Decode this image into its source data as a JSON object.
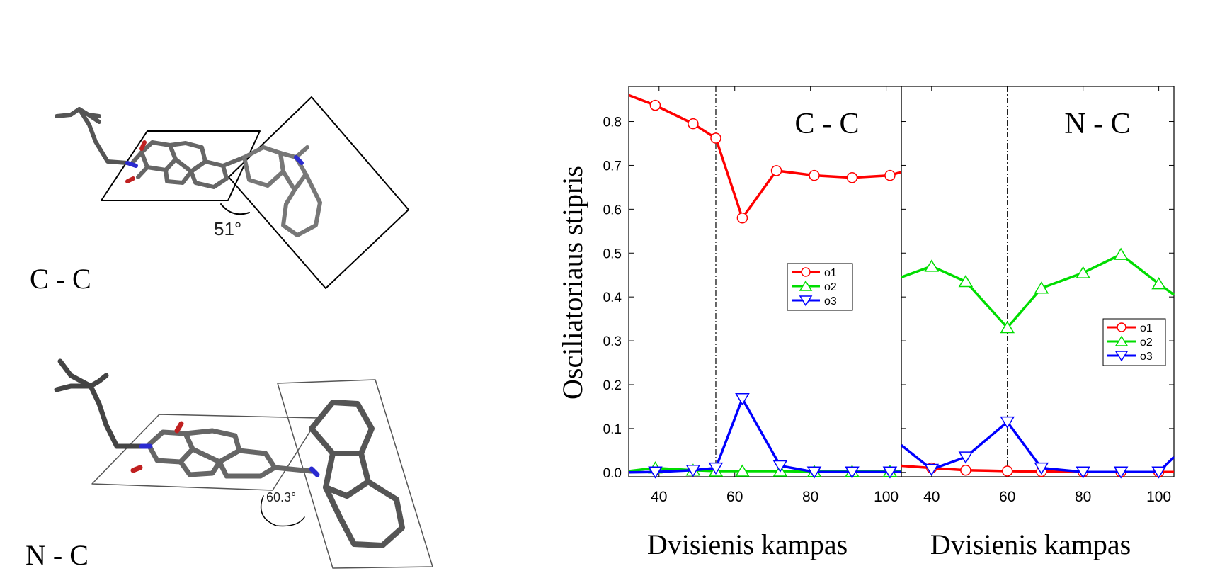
{
  "molecules": [
    {
      "label": "C - C",
      "angle_text": "51°"
    },
    {
      "label": "N - C",
      "angle_text": "60.3°"
    }
  ],
  "chart_data": [
    {
      "type": "line",
      "panel_label": "C - C",
      "xlabel": "Dvisienis kampas",
      "ylabel": "Osciliatoriaus stipris",
      "xlim": [
        32,
        104
      ],
      "ylim": [
        -0.01,
        0.88
      ],
      "x_ticks": [
        40,
        60,
        80,
        100
      ],
      "y_ticks": [
        0.0,
        0.1,
        0.2,
        0.3,
        0.4,
        0.5,
        0.6,
        0.7,
        0.8
      ],
      "vline_x": 55,
      "legend_position": "center-right",
      "series": [
        {
          "name": "o1",
          "color": "#ff0000",
          "marker": "circle",
          "x": [
            32,
            39,
            49,
            55,
            62,
            71,
            81,
            91,
            101,
            104
          ],
          "y": [
            0.86,
            0.837,
            0.795,
            0.762,
            0.58,
            0.688,
            0.677,
            0.672,
            0.677,
            0.685
          ]
        },
        {
          "name": "o2",
          "color": "#00dd00",
          "marker": "triangle-up",
          "x": [
            32,
            39,
            49,
            55,
            62,
            72,
            81,
            91,
            101,
            104
          ],
          "y": [
            0.003,
            0.01,
            0.005,
            0.003,
            0.003,
            0.003,
            0.002,
            0.002,
            0.002,
            0.002
          ]
        },
        {
          "name": "o3",
          "color": "#0000ff",
          "marker": "triangle-down",
          "x": [
            32,
            39,
            49,
            55,
            62,
            72,
            81,
            91,
            101,
            104
          ],
          "y": [
            0.0,
            0.001,
            0.005,
            0.01,
            0.168,
            0.015,
            0.001,
            0.001,
            0.001,
            0.001
          ]
        }
      ]
    },
    {
      "type": "line",
      "panel_label": "N - C",
      "xlabel": "Dvisienis kampas",
      "ylabel": "",
      "xlim": [
        32,
        104
      ],
      "ylim": [
        -0.01,
        0.88
      ],
      "x_ticks": [
        40,
        60,
        80,
        100
      ],
      "vline_x": 60,
      "legend_position": "right",
      "series": [
        {
          "name": "o1",
          "color": "#ff0000",
          "marker": "circle",
          "x": [
            32,
            40,
            49,
            60,
            69,
            80,
            90,
            100,
            104
          ],
          "y": [
            0.015,
            0.01,
            0.005,
            0.003,
            0.002,
            0.001,
            0.001,
            0.001,
            0.001
          ]
        },
        {
          "name": "o2",
          "color": "#00dd00",
          "marker": "triangle-up",
          "x": [
            32,
            40,
            49,
            60,
            69,
            80,
            90,
            100,
            104
          ],
          "y": [
            0.445,
            0.47,
            0.435,
            0.33,
            0.42,
            0.455,
            0.497,
            0.43,
            0.405
          ]
        },
        {
          "name": "o3",
          "color": "#0000ff",
          "marker": "triangle-down",
          "x": [
            32,
            40,
            49,
            60,
            69,
            80,
            90,
            100,
            104
          ],
          "y": [
            0.062,
            0.007,
            0.035,
            0.115,
            0.01,
            0.001,
            0.001,
            0.001,
            0.035
          ]
        }
      ]
    }
  ]
}
